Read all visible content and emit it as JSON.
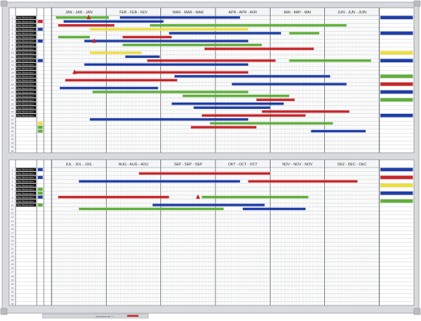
{
  "board": {
    "colors": {
      "blue": "#1f3ea6",
      "red": "#c8262a",
      "green": "#5faf3a",
      "yellow": "#ecdf3a",
      "frame": "#d8dadd",
      "grid": "#c9ccd0",
      "tag": "#1a1a1a"
    },
    "tray_label": "Jahresplaner ■ ───",
    "top_panel": {
      "months": [
        "JAN - JAN - JAN",
        "FEB - FEB - FEV",
        "MAR - MAR - MAR",
        "APR - APR - AVR",
        "MAI - MAY - MAI",
        "JUN - JUN - JUIN"
      ],
      "row_numbers": [
        "1",
        "2",
        "3",
        "4",
        "5",
        "6",
        "7",
        "8",
        "9",
        "10",
        "11",
        "12",
        "13",
        "14",
        "15",
        "16",
        "17",
        "18",
        "19",
        "20",
        "21",
        "22",
        "23",
        "24",
        "25",
        "26",
        "27",
        "28",
        "29",
        "30",
        "31",
        "32",
        "33",
        "34",
        "35"
      ],
      "name_tags": 26,
      "tag_text": "Max Mustermann",
      "color_markers": [
        {
          "row": 2,
          "color": "red"
        },
        {
          "row": 4,
          "color": "blue"
        },
        {
          "row": 7,
          "color": "blue"
        },
        {
          "row": 12,
          "color": "blue"
        },
        {
          "row": 28,
          "color": "yellow"
        },
        {
          "row": 29,
          "color": "green"
        },
        {
          "row": 30,
          "color": "green"
        }
      ],
      "right_legend": [
        {
          "row": 1,
          "color": "blue"
        },
        {
          "row": 5,
          "color": "blue"
        },
        {
          "row": 10,
          "color": "yellow"
        },
        {
          "row": 12,
          "color": "blue"
        },
        {
          "row": 16,
          "color": "green"
        },
        {
          "row": 18,
          "color": "red"
        },
        {
          "row": 20,
          "color": "blue"
        },
        {
          "row": 22,
          "color": "green"
        },
        {
          "row": 26,
          "color": "blue"
        }
      ],
      "bars": [
        {
          "row": 1,
          "start": 0.08,
          "end": 1.05,
          "color": "green"
        },
        {
          "row": 1,
          "start": 1.25,
          "end": 3.45,
          "color": "blue"
        },
        {
          "row": 2,
          "start": 0.22,
          "end": 2.05,
          "color": "blue"
        },
        {
          "row": 3,
          "start": 0.12,
          "end": 1.15,
          "color": "red"
        },
        {
          "row": 3,
          "start": 1.8,
          "end": 5.4,
          "color": "green"
        },
        {
          "row": 4,
          "start": 0.7,
          "end": 3.6,
          "color": "yellow"
        },
        {
          "row": 5,
          "start": 2.15,
          "end": 4.2,
          "color": "blue"
        },
        {
          "row": 5,
          "start": 4.35,
          "end": 4.9,
          "color": "green"
        },
        {
          "row": 6,
          "start": 0.12,
          "end": 0.7,
          "color": "green"
        },
        {
          "row": 6,
          "start": 1.3,
          "end": 2.2,
          "color": "red"
        },
        {
          "row": 7,
          "start": 0.6,
          "end": 3.6,
          "color": "blue"
        },
        {
          "row": 8,
          "start": 1.3,
          "end": 3.85,
          "color": "green"
        },
        {
          "row": 9,
          "start": 2.8,
          "end": 4.8,
          "color": "red"
        },
        {
          "row": 10,
          "start": 0.7,
          "end": 1.65,
          "color": "yellow"
        },
        {
          "row": 11,
          "start": 1.35,
          "end": 1.98,
          "color": "blue"
        },
        {
          "row": 12,
          "start": 1.75,
          "end": 4.1,
          "color": "red"
        },
        {
          "row": 12,
          "start": 4.35,
          "end": 5.85,
          "color": "green"
        },
        {
          "row": 13,
          "start": 0.6,
          "end": 3.6,
          "color": "blue"
        },
        {
          "row": 15,
          "start": 0.4,
          "end": 3.6,
          "color": "red"
        },
        {
          "row": 16,
          "start": 2.25,
          "end": 5.1,
          "color": "blue"
        },
        {
          "row": 17,
          "start": 0.25,
          "end": 2.3,
          "color": "red"
        },
        {
          "row": 18,
          "start": 3.3,
          "end": 5.4,
          "color": "blue"
        },
        {
          "row": 19,
          "start": 0.15,
          "end": 1.95,
          "color": "blue"
        },
        {
          "row": 20,
          "start": 0.75,
          "end": 3.6,
          "color": "green"
        },
        {
          "row": 21,
          "start": 2.4,
          "end": 4.35,
          "color": "green"
        },
        {
          "row": 22,
          "start": 3.75,
          "end": 4.45,
          "color": "red"
        },
        {
          "row": 23,
          "start": 2.2,
          "end": 4.25,
          "color": "blue"
        },
        {
          "row": 24,
          "start": 2.6,
          "end": 4.0,
          "color": "blue"
        },
        {
          "row": 25,
          "start": 3.85,
          "end": 5.45,
          "color": "red"
        },
        {
          "row": 26,
          "start": 2.75,
          "end": 4.65,
          "color": "red"
        },
        {
          "row": 27,
          "start": 0.7,
          "end": 3.6,
          "color": "blue"
        },
        {
          "row": 28,
          "start": 2.9,
          "end": 5.15,
          "color": "green"
        },
        {
          "row": 29,
          "start": 2.55,
          "end": 3.75,
          "color": "red"
        },
        {
          "row": 30,
          "start": 4.75,
          "end": 5.75,
          "color": "blue"
        }
      ],
      "triangles": [
        {
          "row": 1,
          "pos": 0.68
        },
        {
          "row": 7,
          "pos": 0.78
        },
        {
          "row": 15,
          "pos": 0.42
        }
      ]
    },
    "bottom_panel": {
      "months": [
        "JUL - JUL - JUIL",
        "AUG - AUG - AOU",
        "SEP - SEP - SEP",
        "OKT - OCT - OCT",
        "NOV - NOV - NOV",
        "DEZ - DEC - DEC"
      ],
      "row_numbers": [
        "1",
        "2",
        "3",
        "4",
        "5",
        "6",
        "7",
        "8",
        "9",
        "10",
        "11",
        "12",
        "13",
        "14",
        "15",
        "16",
        "17",
        "18",
        "19",
        "20",
        "21",
        "22",
        "23",
        "24",
        "25",
        "26",
        "27",
        "28",
        "29",
        "30",
        "31",
        "32",
        "33",
        "34",
        "35"
      ],
      "name_tags": 10,
      "tag_text": "Max Mustermann",
      "color_markers": [
        {
          "row": 1,
          "color": "blue"
        },
        {
          "row": 3,
          "color": "blue"
        },
        {
          "row": 6,
          "color": "green"
        },
        {
          "row": 7,
          "color": "green"
        },
        {
          "row": 8,
          "color": "blue"
        },
        {
          "row": 10,
          "color": "green"
        }
      ],
      "right_legend": [
        {
          "row": 1,
          "color": "blue"
        },
        {
          "row": 3,
          "color": "red"
        },
        {
          "row": 5,
          "color": "yellow"
        },
        {
          "row": 7,
          "color": "blue"
        },
        {
          "row": 9,
          "color": "green"
        }
      ],
      "bars": [
        {
          "row": 2,
          "start": 1.6,
          "end": 4.0,
          "color": "red"
        },
        {
          "row": 4,
          "start": 0.5,
          "end": 3.45,
          "color": "blue"
        },
        {
          "row": 4,
          "start": 3.6,
          "end": 5.6,
          "color": "red"
        },
        {
          "row": 8,
          "start": 0.12,
          "end": 2.15,
          "color": "red"
        },
        {
          "row": 8,
          "start": 2.75,
          "end": 4.7,
          "color": "green"
        },
        {
          "row": 10,
          "start": 1.85,
          "end": 3.9,
          "color": "blue"
        },
        {
          "row": 11,
          "start": 0.5,
          "end": 3.15,
          "color": "green"
        },
        {
          "row": 11,
          "start": 3.5,
          "end": 4.65,
          "color": "blue"
        }
      ],
      "triangles": [
        {
          "row": 8,
          "pos": 2.68
        }
      ]
    }
  }
}
